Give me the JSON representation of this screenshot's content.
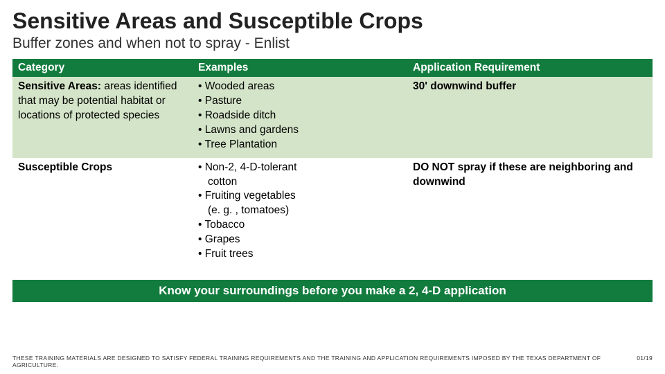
{
  "title": "Sensitive Areas and Susceptible Crops",
  "subtitle": "Buffer zones and when not to spray - Enlist",
  "headers": {
    "c0": "Category",
    "c1": "Examples",
    "c2": "Application Requirement"
  },
  "row1": {
    "cat_bold": "Sensitive Areas:",
    "cat_rest": " areas identified that may be potential habitat or locations of protected species",
    "ex": [
      "Wooded areas",
      "Pasture",
      "Roadside ditch",
      "Lawns and gardens",
      "Tree Plantation"
    ],
    "req": "30' downwind buffer"
  },
  "row2": {
    "cat_bold": "Susceptible Crops",
    "ex_lines": [
      {
        "t": "Non-2, 4-D-tolerant",
        "indent": false,
        "bullet": true
      },
      {
        "t": "cotton",
        "indent": true,
        "bullet": false
      },
      {
        "t": "Fruiting vegetables",
        "indent": false,
        "bullet": true
      },
      {
        "t": "(e. g. , tomatoes)",
        "indent": true,
        "bullet": false
      },
      {
        "t": "Tobacco",
        "indent": false,
        "bullet": true
      },
      {
        "t": "Grapes",
        "indent": false,
        "bullet": true
      },
      {
        "t": "Fruit trees",
        "indent": false,
        "bullet": true
      }
    ],
    "req": "DO NOT spray if these are neighboring and downwind"
  },
  "banner": "Know your surroundings before you make a 2, 4-D application",
  "footer_left": "THESE TRAINING MATERIALS ARE DESIGNED TO SATISFY FEDERAL TRAINING REQUIREMENTS AND THE TRAINING AND APPLICATION REQUIREMENTS IMPOSED BY THE TEXAS DEPARTMENT OF AGRICULTURE.",
  "footer_right": "01/19"
}
